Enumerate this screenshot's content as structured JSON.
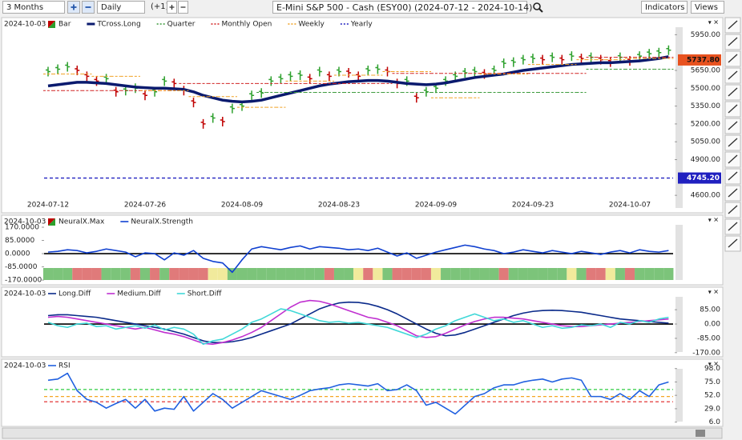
{
  "toolbar": {
    "range": "3 Months",
    "interval": "Daily",
    "offset": "(+1)",
    "title": "E-Mini S&P 500 - Cash (ESY00) (2024-07-12 - 2024-10-14)",
    "indicators": "Indicators",
    "views": "Views"
  },
  "chart_data": [
    {
      "type": "price",
      "date": "2024-10-03",
      "axis_side": "right",
      "categories": [
        "2024-07-12",
        null,
        null,
        null,
        null,
        null,
        null,
        null,
        null,
        null,
        "2024-07-26",
        null,
        null,
        null,
        null,
        null,
        null,
        null,
        null,
        null,
        "2024-08-09",
        null,
        null,
        null,
        null,
        null,
        null,
        null,
        null,
        null,
        "2024-08-23",
        null,
        null,
        null,
        null,
        null,
        null,
        null,
        null,
        null,
        "2024-09-09",
        null,
        null,
        null,
        null,
        null,
        null,
        null,
        null,
        null,
        "2024-09-23",
        null,
        null,
        null,
        null,
        null,
        null,
        null,
        null,
        null,
        "2024-10-07",
        null,
        null,
        null,
        null
      ],
      "ylim": [
        4480,
        6040
      ],
      "yticks": [
        {
          "value": 4600,
          "label": "4600.00"
        },
        {
          "value": 4900,
          "label": "4900.00"
        },
        {
          "value": 5050,
          "label": "5050.00"
        },
        {
          "value": 5200,
          "label": "5200.00"
        },
        {
          "value": 5350,
          "label": "5350.00"
        },
        {
          "value": 5500,
          "label": "5500.00"
        },
        {
          "value": 5650,
          "label": "5650.00"
        },
        {
          "value": 5950,
          "label": "5950.00"
        }
      ],
      "last_price": {
        "value": 5737.8,
        "label": "5737.80",
        "color": "#e8521f"
      },
      "series": [
        {
          "name": "Bar",
          "kind": "bar",
          "up_color": "#2ca02c",
          "down_color": "#c00000",
          "values": [
            5640,
            5660,
            5680,
            5650,
            5600,
            5560,
            5580,
            5470,
            5480,
            5500,
            5440,
            5470,
            5560,
            5540,
            5480,
            5380,
            5200,
            5250,
            5220,
            5330,
            5350,
            5440,
            5460,
            5560,
            5580,
            5600,
            5610,
            5580,
            5640,
            5600,
            5640,
            5630,
            5600,
            5650,
            5660,
            5640,
            5540,
            5560,
            5420,
            5470,
            5500,
            5560,
            5600,
            5630,
            5640,
            5620,
            5650,
            5710,
            5720,
            5740,
            5750,
            5740,
            5760,
            5740,
            5770,
            5750,
            5760,
            5740,
            5720,
            5760,
            5730,
            5770,
            5790,
            5800,
            5820
          ]
        },
        {
          "name": "TCross.Long",
          "kind": "line",
          "color": "#0a1a6e",
          "width": 3.5,
          "values": [
            5520,
            5530,
            5540,
            5550,
            5550,
            5545,
            5540,
            5530,
            5520,
            5510,
            5505,
            5500,
            5500,
            5495,
            5490,
            5470,
            5440,
            5420,
            5400,
            5390,
            5385,
            5390,
            5400,
            5420,
            5440,
            5460,
            5480,
            5500,
            5520,
            5535,
            5545,
            5555,
            5560,
            5565,
            5565,
            5560,
            5550,
            5540,
            5535,
            5530,
            5535,
            5545,
            5560,
            5575,
            5590,
            5600,
            5610,
            5620,
            5635,
            5650,
            5660,
            5670,
            5680,
            5690,
            5700,
            5705,
            5710,
            5715,
            5715,
            5720,
            5725,
            5730,
            5740,
            5750,
            5765
          ]
        },
        {
          "name": "Quarter",
          "kind": "step",
          "color": "#3a9a3a",
          "values": [
            null,
            null,
            null,
            null,
            null,
            null,
            null,
            null,
            null,
            null,
            null,
            null,
            null,
            null,
            null,
            null,
            null,
            null,
            null,
            null,
            null,
            null,
            5465,
            5465,
            5465,
            5465,
            5465,
            5465,
            5465,
            5465,
            5465,
            5465,
            5465,
            5465,
            5465,
            5465,
            5465,
            5465,
            5465,
            5465,
            5465,
            5465,
            5465,
            5465,
            5465,
            5465,
            5465,
            5465,
            5465,
            5465,
            5465,
            5465,
            5465,
            5465,
            5465,
            5465,
            5660,
            5660,
            5660,
            5660,
            5660,
            5660,
            5660,
            5660,
            5660
          ]
        },
        {
          "name": "Monthly Open",
          "kind": "step",
          "color": "#d02020",
          "values": [
            5480,
            5480,
            5480,
            5480,
            5480,
            5480,
            5480,
            5480,
            5480,
            5480,
            5480,
            5480,
            5480,
            5480,
            5540,
            5540,
            5540,
            5540,
            5540,
            5540,
            5540,
            5540,
            5540,
            5540,
            5540,
            5540,
            5540,
            5540,
            5540,
            5540,
            5540,
            5540,
            5540,
            5540,
            5540,
            5540,
            5625,
            5625,
            5625,
            5625,
            5625,
            5625,
            5625,
            5625,
            5625,
            5625,
            5625,
            5625,
            5625,
            5625,
            5625,
            5625,
            5625,
            5625,
            5625,
            5625,
            5760,
            5760,
            5760,
            5760,
            5760,
            5760,
            5760,
            5760,
            5760
          ]
        },
        {
          "name": "Weekly",
          "kind": "step",
          "color": "#f0a020",
          "values": [
            5620,
            5620,
            5620,
            5620,
            5620,
            5600,
            5600,
            5600,
            5600,
            5600,
            5480,
            5480,
            5480,
            5480,
            5480,
            5430,
            5430,
            5430,
            5430,
            5430,
            5340,
            5340,
            5340,
            5340,
            5340,
            5560,
            5560,
            5560,
            5560,
            5560,
            5610,
            5610,
            5610,
            5610,
            5610,
            5640,
            5640,
            5640,
            5640,
            5640,
            5420,
            5420,
            5420,
            5420,
            5420,
            5620,
            5620,
            5620,
            5620,
            5620,
            5700,
            5700,
            5700,
            5700,
            5700,
            5740,
            5740,
            5740,
            5740,
            5740,
            5750,
            5750,
            5750,
            5750,
            5750
          ]
        },
        {
          "name": "Yearly",
          "kind": "level",
          "color": "#2020c0",
          "value": 4745.2,
          "value_label": "4745.20"
        }
      ]
    },
    {
      "type": "indicator",
      "date": "2024-10-03",
      "axis_side": "left",
      "zero_line": true,
      "ylim": [
        -185,
        232
      ],
      "yticks": [
        {
          "value": 170,
          "label": "170.0000"
        },
        {
          "value": 85,
          "label": "85.0000"
        },
        {
          "value": 0,
          "label": "0.0000"
        },
        {
          "value": -85,
          "label": "-85.0000"
        },
        {
          "value": -170,
          "label": "-170.0000"
        }
      ],
      "series": [
        {
          "name": "NeuralX.Max",
          "kind": "strip",
          "colors": [
            "#7cc47a",
            "#7cc47a",
            "#7cc47a",
            "#e07a7a",
            "#e07a7a",
            "#e07a7a",
            "#7cc47a",
            "#7cc47a",
            "#7cc47a",
            "#e07a7a",
            "#7cc47a",
            "#e07a7a",
            "#7cc47a",
            "#e07a7a",
            "#e07a7a",
            "#e07a7a",
            "#e07a7a",
            "#f1ea9c",
            "#f1ea9c",
            "#7cc47a",
            "#7cc47a",
            "#7cc47a",
            "#7cc47a",
            "#7cc47a",
            "#7cc47a",
            "#7cc47a",
            "#7cc47a",
            "#7cc47a",
            "#7cc47a",
            "#e07a7a",
            "#7cc47a",
            "#7cc47a",
            "#f1ea9c",
            "#e07a7a",
            "#f1ea9c",
            "#7cc47a",
            "#e07a7a",
            "#e07a7a",
            "#e07a7a",
            "#e07a7a",
            "#f1ea9c",
            "#7cc47a",
            "#7cc47a",
            "#7cc47a",
            "#7cc47a",
            "#7cc47a",
            "#7cc47a",
            "#e07a7a",
            "#7cc47a",
            "#7cc47a",
            "#7cc47a",
            "#7cc47a",
            "#7cc47a",
            "#7cc47a",
            "#f1ea9c",
            "#7cc47a",
            "#e07a7a",
            "#e07a7a",
            "#f1ea9c",
            "#7cc47a",
            "#e07a7a",
            "#7cc47a",
            "#7cc47a",
            "#7cc47a",
            "#7cc47a"
          ]
        },
        {
          "name": "NeuralX.Strength",
          "kind": "line",
          "color": "#1040d0",
          "width": 1.6,
          "values": [
            10,
            15,
            25,
            20,
            5,
            15,
            30,
            20,
            10,
            -20,
            5,
            0,
            -40,
            5,
            -10,
            20,
            -30,
            -50,
            -60,
            -120,
            -40,
            30,
            45,
            35,
            25,
            40,
            50,
            30,
            45,
            40,
            35,
            25,
            30,
            20,
            35,
            10,
            -15,
            5,
            -30,
            -10,
            10,
            25,
            40,
            55,
            45,
            30,
            20,
            0,
            10,
            25,
            15,
            5,
            20,
            10,
            0,
            15,
            5,
            -5,
            10,
            20,
            5,
            25,
            15,
            10,
            20
          ]
        }
      ]
    },
    {
      "type": "indicator",
      "date": "2024-10-03",
      "axis_side": "right",
      "zero_line": true,
      "ylim": [
        -190,
        176
      ],
      "yticks": [
        {
          "value": 85,
          "label": "85.00"
        },
        {
          "value": 0,
          "label": "0.00"
        },
        {
          "value": -85,
          "label": "-85.00"
        },
        {
          "value": -170,
          "label": "-170.00"
        }
      ],
      "series": [
        {
          "name": "Long.Diff",
          "kind": "line",
          "color": "#0a2a8a",
          "width": 1.6,
          "values": [
            50,
            55,
            55,
            50,
            45,
            40,
            30,
            20,
            10,
            0,
            -10,
            -20,
            -30,
            -45,
            -60,
            -80,
            -100,
            -110,
            -110,
            -105,
            -95,
            -80,
            -60,
            -40,
            -20,
            0,
            30,
            60,
            90,
            110,
            125,
            130,
            128,
            120,
            105,
            85,
            60,
            30,
            0,
            -30,
            -55,
            -70,
            -65,
            -50,
            -30,
            -10,
            10,
            30,
            50,
            65,
            75,
            80,
            82,
            80,
            75,
            70,
            60,
            50,
            40,
            30,
            25,
            20,
            15,
            10,
            5
          ]
        },
        {
          "name": "Medium.Diff",
          "kind": "line",
          "color": "#c030d0",
          "width": 1.6,
          "values": [
            40,
            45,
            40,
            30,
            20,
            10,
            0,
            -10,
            -20,
            -30,
            -20,
            -35,
            -50,
            -60,
            -75,
            -95,
            -115,
            -120,
            -110,
            -95,
            -75,
            -50,
            -20,
            20,
            60,
            100,
            130,
            140,
            135,
            120,
            100,
            80,
            60,
            40,
            30,
            10,
            -10,
            -40,
            -70,
            -80,
            -75,
            -55,
            -30,
            -5,
            15,
            30,
            40,
            40,
            35,
            30,
            20,
            10,
            0,
            -10,
            -15,
            -15,
            -10,
            -5,
            0,
            5,
            10,
            15,
            20,
            25,
            30
          ]
        },
        {
          "name": "Short.Diff",
          "kind": "line",
          "color": "#40d8d8",
          "width": 1.6,
          "values": [
            10,
            -10,
            -20,
            0,
            5,
            -15,
            -10,
            -30,
            -20,
            -10,
            -25,
            -5,
            -35,
            -20,
            -30,
            -60,
            -120,
            -100,
            -90,
            -60,
            -30,
            10,
            30,
            60,
            90,
            80,
            60,
            40,
            20,
            10,
            15,
            5,
            10,
            0,
            -10,
            -20,
            -40,
            -60,
            -80,
            -60,
            -30,
            -10,
            20,
            40,
            60,
            40,
            20,
            30,
            10,
            20,
            0,
            -20,
            -10,
            -25,
            -20,
            -5,
            -10,
            0,
            -20,
            10,
            0,
            20,
            10,
            30,
            40
          ]
        }
      ]
    },
    {
      "type": "indicator",
      "date": "2024-10-03",
      "axis_side": "right",
      "ylim": [
        0,
        110
      ],
      "yticks": [
        {
          "value": 98,
          "label": "98.0"
        },
        {
          "value": 75,
          "label": "75.0"
        },
        {
          "value": 52,
          "label": "52.0"
        },
        {
          "value": 29,
          "label": "29.0"
        },
        {
          "value": 6,
          "label": "6.0"
        }
      ],
      "levels": [
        {
          "value": 62,
          "color": "#2ecc40"
        },
        {
          "value": 50,
          "color": "#f5a623"
        },
        {
          "value": 41,
          "color": "#e02020"
        }
      ],
      "series": [
        {
          "name": "RSI",
          "kind": "line",
          "color": "#2060e0",
          "width": 1.6,
          "values": [
            78,
            80,
            90,
            60,
            45,
            40,
            30,
            38,
            45,
            30,
            45,
            25,
            30,
            28,
            50,
            25,
            40,
            55,
            45,
            30,
            40,
            50,
            60,
            55,
            50,
            45,
            52,
            60,
            63,
            65,
            70,
            72,
            70,
            68,
            72,
            60,
            62,
            70,
            60,
            35,
            40,
            30,
            20,
            35,
            50,
            55,
            65,
            70,
            70,
            75,
            78,
            80,
            75,
            80,
            82,
            78,
            50,
            50,
            45,
            55,
            45,
            60,
            50,
            70,
            75
          ]
        }
      ]
    }
  ]
}
